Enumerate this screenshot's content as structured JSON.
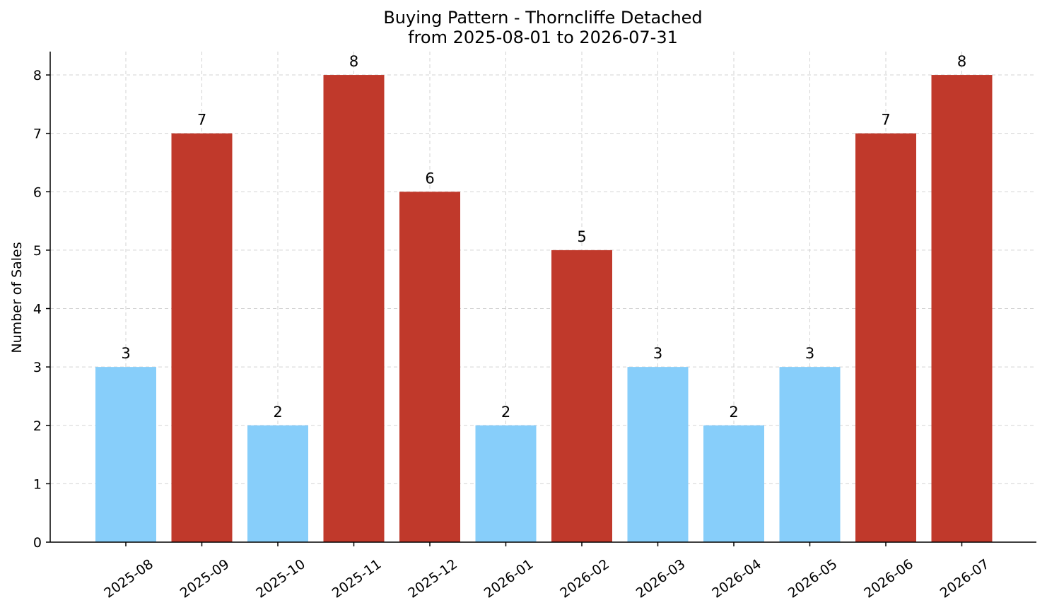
{
  "chart_data": {
    "type": "bar",
    "title": "Buying Pattern - Thorncliffe Detached",
    "subtitle": "from 2025-08-01 to 2026-07-31",
    "xlabel": "",
    "ylabel": "Number of Sales",
    "categories": [
      "2025-08",
      "2025-09",
      "2025-10",
      "2025-11",
      "2025-12",
      "2026-01",
      "2026-02",
      "2026-03",
      "2026-04",
      "2026-05",
      "2026-06",
      "2026-07"
    ],
    "values": [
      3,
      7,
      2,
      8,
      6,
      2,
      5,
      3,
      2,
      3,
      7,
      8
    ],
    "bar_colors": [
      "#87cefa",
      "#c0392b",
      "#87cefa",
      "#c0392b",
      "#c0392b",
      "#87cefa",
      "#c0392b",
      "#87cefa",
      "#87cefa",
      "#87cefa",
      "#c0392b",
      "#c0392b"
    ],
    "ylim": [
      0,
      8.4
    ],
    "yticks": [
      0,
      1,
      2,
      3,
      4,
      5,
      6,
      7,
      8
    ],
    "grid": true,
    "data_labels": true
  }
}
